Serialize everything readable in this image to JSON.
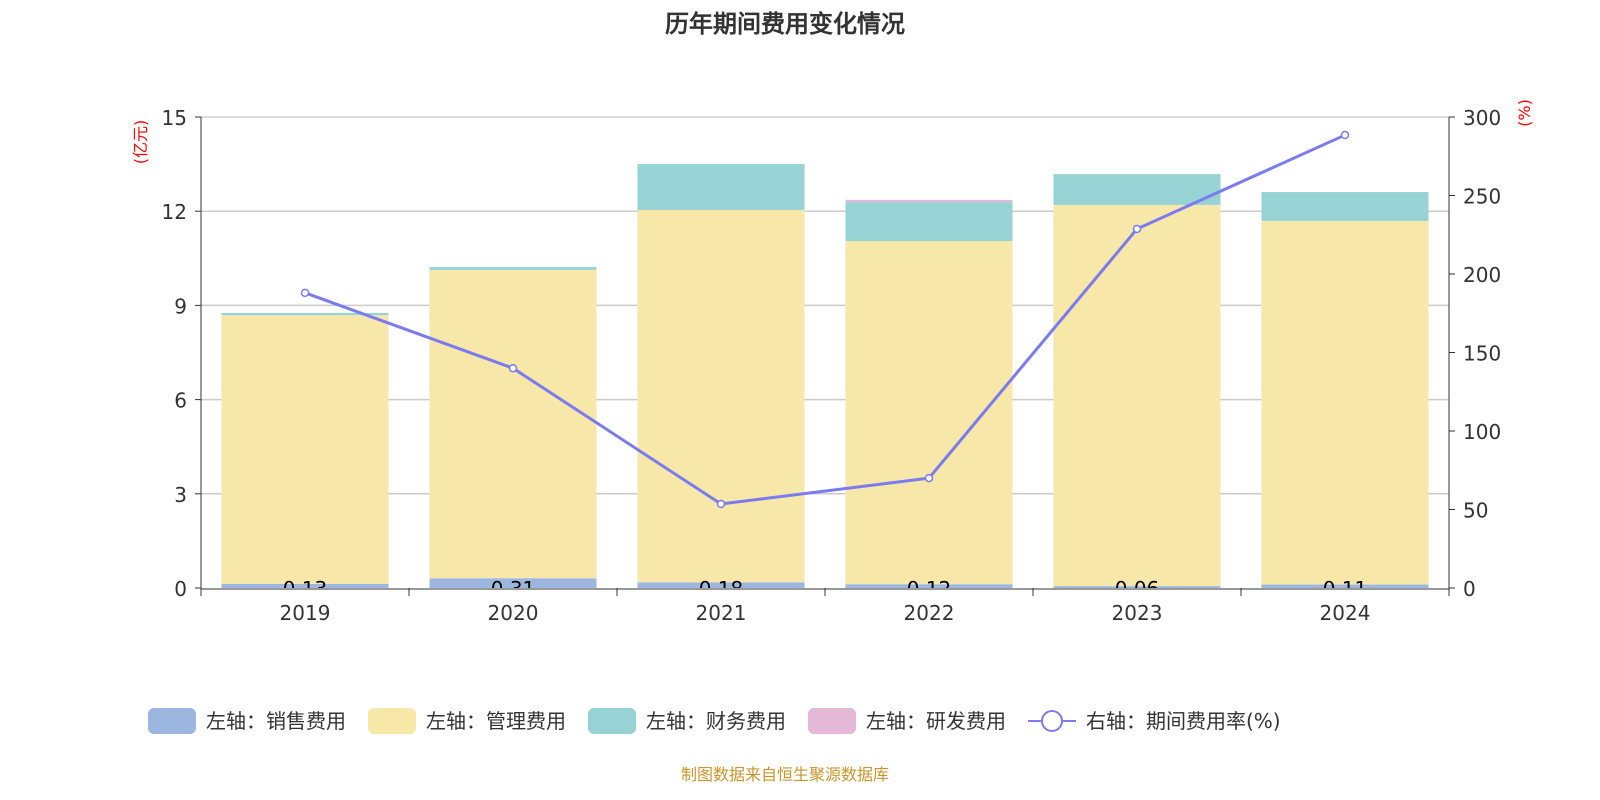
{
  "chart_data": {
    "type": "bar",
    "title": "历年期间费用变化情况",
    "ylabel": "(亿元)",
    "y2label": "(%)",
    "ylim": [
      0,
      15
    ],
    "y2lim": [
      0,
      300
    ],
    "yticks": [
      "0",
      "3",
      "6",
      "9",
      "12",
      "15"
    ],
    "y2ticks": [
      "0",
      "50",
      "100",
      "150",
      "200",
      "250",
      "300"
    ],
    "categories": [
      "2019",
      "2020",
      "2021",
      "2022",
      "2023",
      "2024"
    ],
    "series": [
      {
        "name": "左轴：销售费用",
        "color": "#9bb7e0",
        "values": [
          0.13,
          0.31,
          0.18,
          0.12,
          0.06,
          0.11
        ],
        "labels": [
          "0.13",
          "0.31",
          "0.18",
          "0.12",
          "0.06",
          "0.11"
        ]
      },
      {
        "name": "左轴：管理费用",
        "color": "#f7e7a9",
        "values": [
          8.56,
          9.82,
          11.86,
          10.93,
          12.14,
          11.58
        ]
      },
      {
        "name": "左轴：财务费用",
        "color": "#97d3d5",
        "values": [
          0.07,
          0.09,
          1.46,
          1.24,
          0.98,
          0.92
        ]
      },
      {
        "name": "左轴：研发费用",
        "color": "#e6b8d8",
        "values": [
          0,
          0,
          0,
          0.07,
          0,
          0
        ]
      }
    ],
    "line": {
      "name": "右轴：期间费用率(%)",
      "color": "#7b7bf0",
      "values": [
        188,
        140,
        53.5,
        70,
        228.7,
        288.5
      ]
    },
    "source": "制图数据来自恒生聚源数据库"
  }
}
